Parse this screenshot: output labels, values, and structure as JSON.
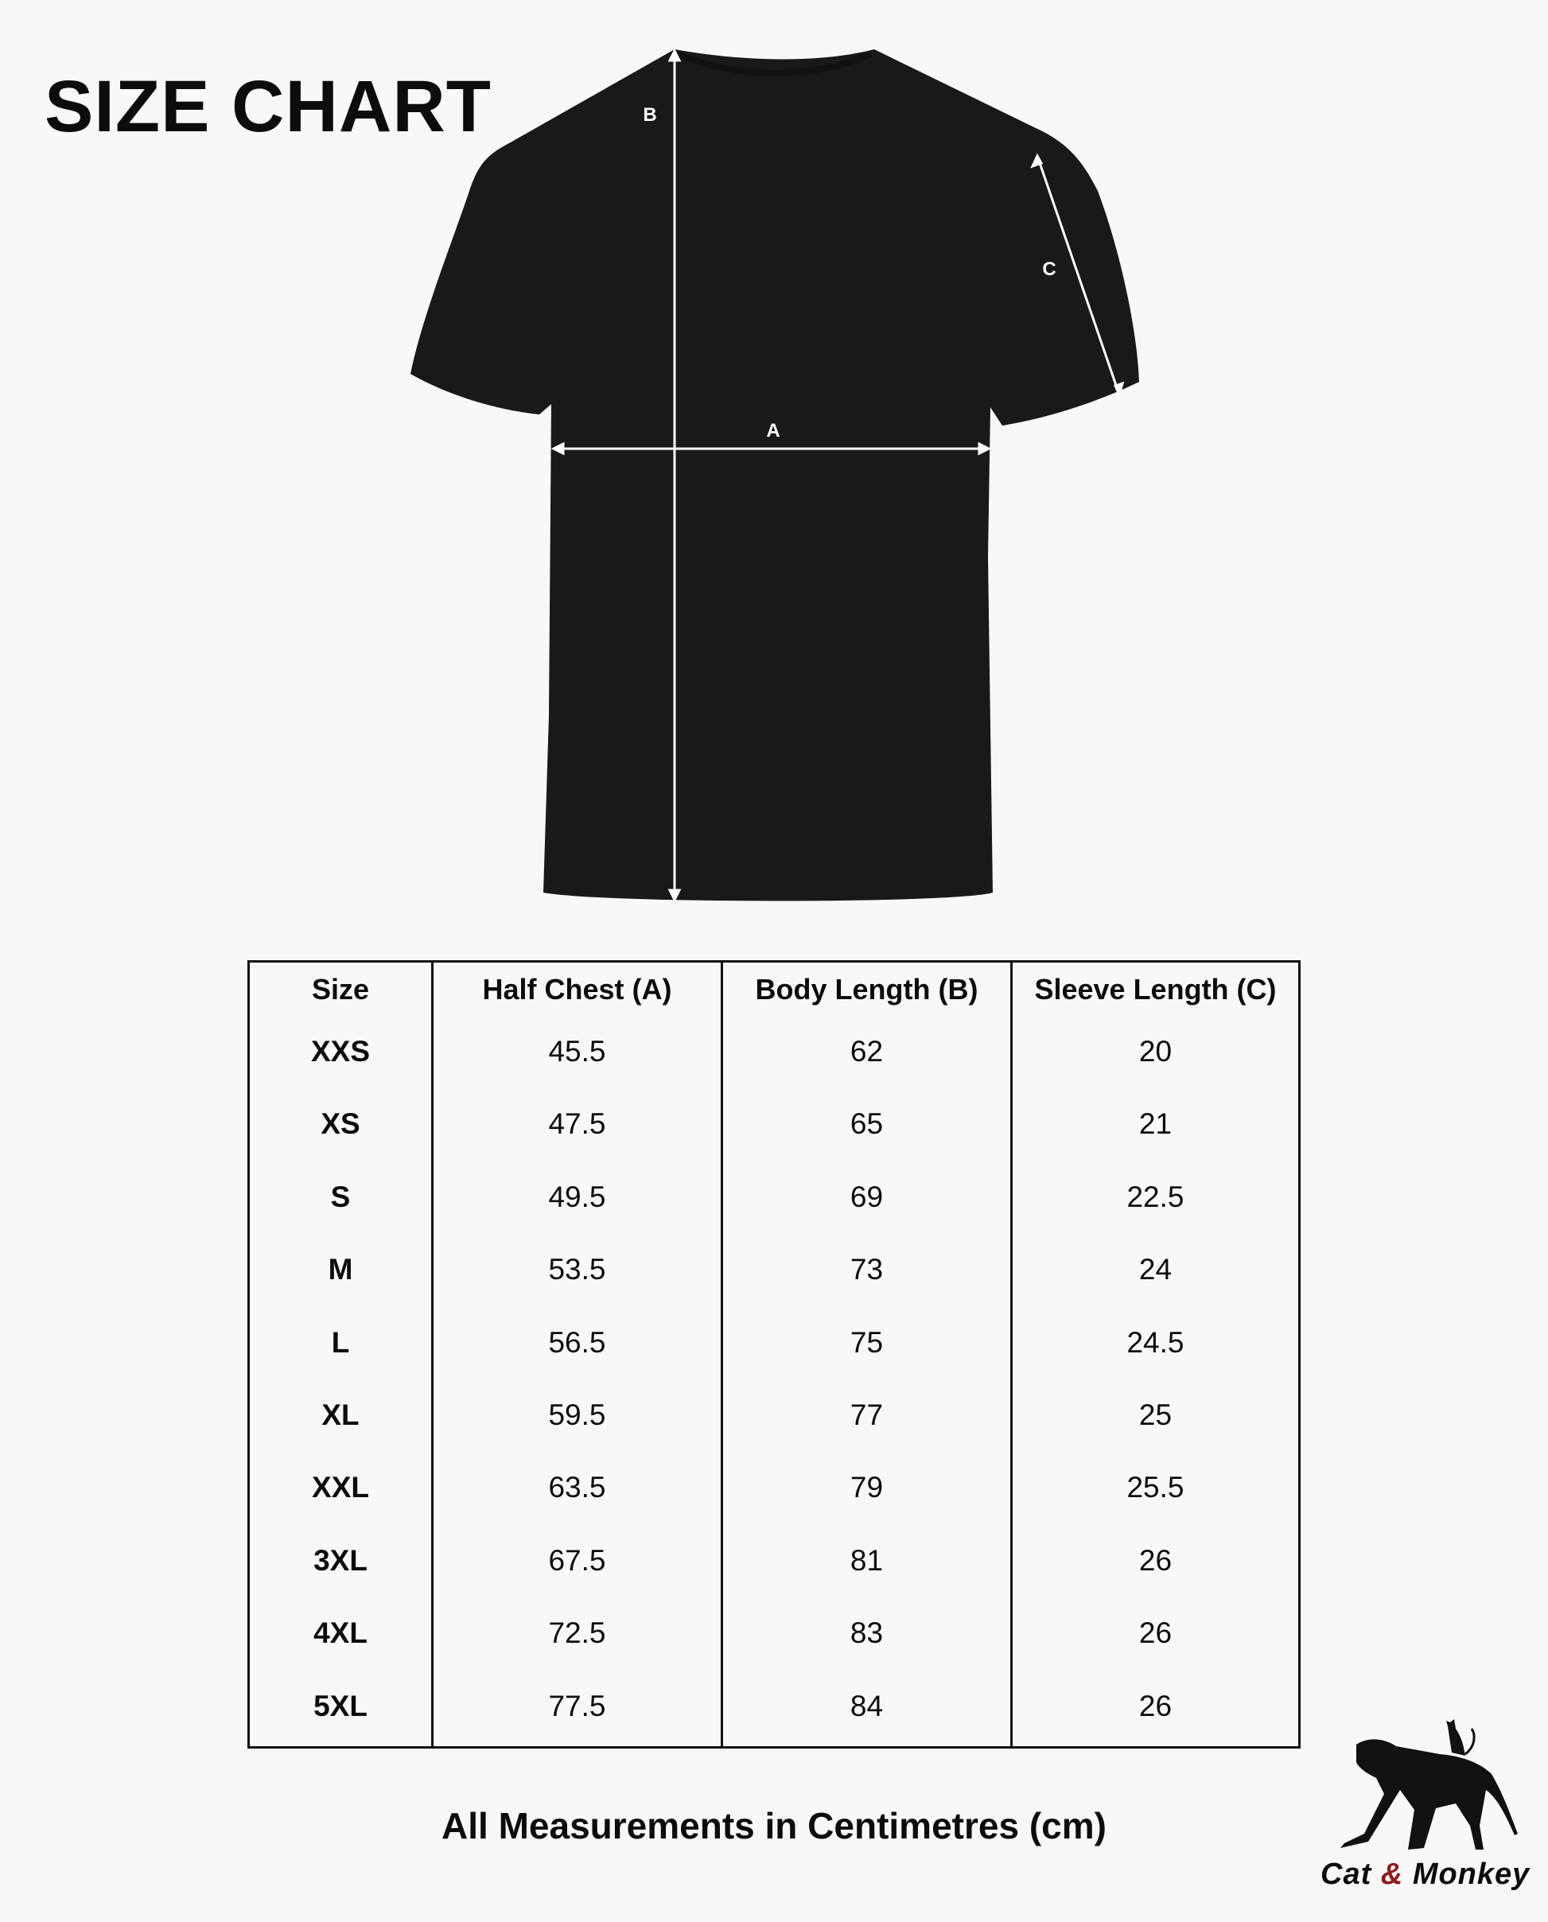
{
  "title": "SIZE CHART",
  "diagram": {
    "labels": {
      "a": "A",
      "b": "B",
      "c": "C"
    },
    "garment_color": "#1b1918",
    "arrow_color": "#ffffff"
  },
  "table": {
    "headers": [
      "Size",
      "Half Chest (A)",
      "Body Length (B)",
      "Sleeve Length (C)"
    ],
    "rows": [
      [
        "XXS",
        "45.5",
        "62",
        "20"
      ],
      [
        "XS",
        "47.5",
        "65",
        "21"
      ],
      [
        "S",
        "49.5",
        "69",
        "22.5"
      ],
      [
        "M",
        "53.5",
        "73",
        "24"
      ],
      [
        "L",
        "56.5",
        "75",
        "24.5"
      ],
      [
        "XL",
        "59.5",
        "77",
        "25"
      ],
      [
        "XXL",
        "63.5",
        "79",
        "25.5"
      ],
      [
        "3XL",
        "67.5",
        "81",
        "26"
      ],
      [
        "4XL",
        "72.5",
        "83",
        "26"
      ],
      [
        "5XL",
        "77.5",
        "84",
        "26"
      ]
    ]
  },
  "footer": "All Measurements in Centimetres (cm)",
  "logo": {
    "word1": "Cat",
    "amp": "&",
    "word2": "Monkey",
    "accent": "#8f1a1a"
  }
}
